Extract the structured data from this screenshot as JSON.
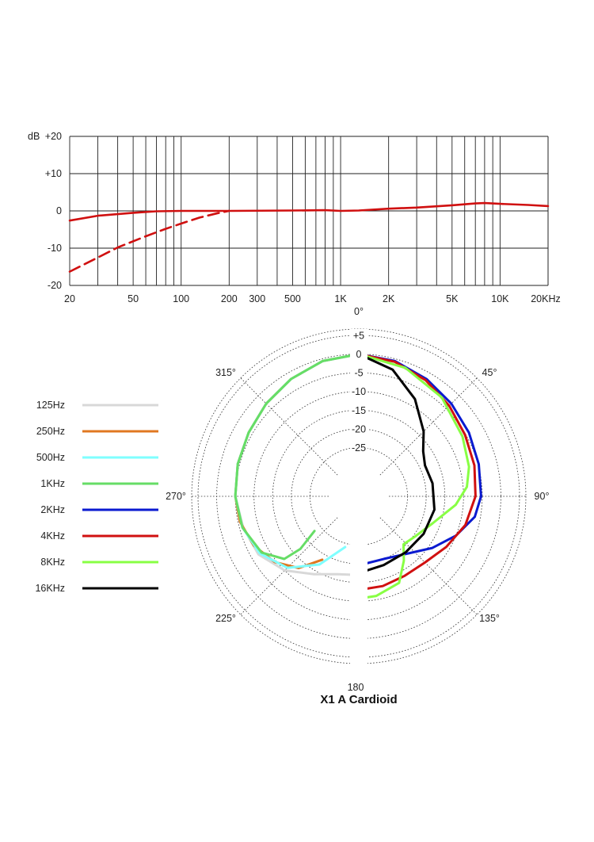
{
  "chart_data": [
    {
      "type": "line",
      "xscale": "log",
      "xlim": [
        20,
        20000
      ],
      "ylim": [
        -20,
        20
      ],
      "yunit": "dB",
      "grid": true,
      "y_ticks": [
        {
          "v": 20,
          "label": "+20"
        },
        {
          "v": 10,
          "label": "+10"
        },
        {
          "v": 0,
          "label": "0"
        },
        {
          "v": -10,
          "label": "-10"
        },
        {
          "v": -20,
          "label": "-20"
        }
      ],
      "x_ticks": [
        {
          "v": 20,
          "label": "20"
        },
        {
          "v": 50,
          "label": "50"
        },
        {
          "v": 100,
          "label": "100"
        },
        {
          "v": 200,
          "label": "200"
        },
        {
          "v": 300,
          "label": "300"
        },
        {
          "v": 500,
          "label": "500"
        },
        {
          "v": 1000,
          "label": "1K"
        },
        {
          "v": 2000,
          "label": "2K"
        },
        {
          "v": 5000,
          "label": "5K"
        },
        {
          "v": 10000,
          "label": "10K"
        },
        {
          "v": 20000,
          "label": "20KHz"
        }
      ],
      "series": [
        {
          "style": "solid",
          "color": "#d01010",
          "points": [
            [
              20,
              -2.6
            ],
            [
              30,
              -1.3
            ],
            [
              50,
              -0.5
            ],
            [
              70,
              -0.1
            ],
            [
              100,
              0
            ],
            [
              200,
              0
            ],
            [
              500,
              0.1
            ],
            [
              800,
              0.2
            ],
            [
              1000,
              0
            ],
            [
              1300,
              0.1
            ],
            [
              2000,
              0.6
            ],
            [
              3000,
              0.9
            ],
            [
              5000,
              1.5
            ],
            [
              7000,
              2.0
            ],
            [
              8000,
              2.1
            ],
            [
              10000,
              1.9
            ],
            [
              15000,
              1.6
            ],
            [
              20000,
              1.3
            ]
          ]
        },
        {
          "style": "dashed",
          "color": "#d01010",
          "points": [
            [
              20,
              -16.3
            ],
            [
              30,
              -12.5
            ],
            [
              40,
              -9.8
            ],
            [
              60,
              -6.8
            ],
            [
              80,
              -4.8
            ],
            [
              100,
              -3.4
            ],
            [
              130,
              -1.8
            ],
            [
              170,
              -0.6
            ],
            [
              200,
              0
            ]
          ]
        }
      ]
    },
    {
      "type": "polar",
      "title": "X1 A Cardioid",
      "r_ticks": [
        {
          "v": 5,
          "label": "+5"
        },
        {
          "v": 0,
          "label": "0"
        },
        {
          "v": -5,
          "label": "-5"
        },
        {
          "v": -10,
          "label": "-10"
        },
        {
          "v": -15,
          "label": "-15"
        },
        {
          "v": -20,
          "label": "-20"
        },
        {
          "v": -25,
          "label": "-25"
        }
      ],
      "r_range": [
        -30,
        5
      ],
      "angle_labels": [
        {
          "deg": 0,
          "label": "0°"
        },
        {
          "deg": 45,
          "label": "45°"
        },
        {
          "deg": 90,
          "label": "90°"
        },
        {
          "deg": 135,
          "label": "135°"
        },
        {
          "deg": 180,
          "label": "180"
        },
        {
          "deg": 225,
          "label": "225°"
        },
        {
          "deg": 270,
          "label": "270°"
        },
        {
          "deg": 315,
          "label": "315°"
        }
      ],
      "series": [
        {
          "name": "125Hz",
          "color": "#d8d8d8",
          "mirror": false,
          "points": [
            [
              180,
              -17
            ],
            [
              195,
              -16.5
            ],
            [
              210,
              -14
            ],
            [
              225,
              -10
            ],
            [
              240,
              -7
            ],
            [
              255,
              -6
            ],
            [
              270,
              -5
            ],
            [
              285,
              -4.5
            ],
            [
              300,
              -4
            ],
            [
              315,
              -3
            ],
            [
              330,
              -1.8
            ],
            [
              345,
              -0.6
            ],
            [
              360,
              0
            ]
          ]
        },
        {
          "name": "250Hz",
          "color": "#e07820",
          "mirror": false,
          "points": [
            [
              210,
              -18.5
            ],
            [
              220,
              -13
            ],
            [
              232,
              -9.5
            ],
            [
              245,
              -7
            ],
            [
              258,
              -5.5
            ],
            [
              270,
              -5
            ],
            [
              285,
              -4.5
            ],
            [
              300,
              -4
            ],
            [
              315,
              -3
            ],
            [
              330,
              -1.8
            ],
            [
              345,
              -0.6
            ],
            [
              360,
              0
            ]
          ]
        },
        {
          "name": "500Hz",
          "color": "#7fffff",
          "mirror": false,
          "points": [
            [
              195,
              -24
            ],
            [
              210,
              -17
            ],
            [
              225,
              -11
            ],
            [
              240,
              -7.5
            ],
            [
              255,
              -5.8
            ],
            [
              270,
              -5
            ],
            [
              285,
              -4.5
            ],
            [
              300,
              -4
            ],
            [
              315,
              -3
            ],
            [
              330,
              -1.8
            ],
            [
              345,
              -0.6
            ],
            [
              360,
              0
            ]
          ]
        },
        {
          "name": "1KHz",
          "color": "#66dd66",
          "mirror": false,
          "points": [
            [
              232,
              -23
            ],
            [
              228,
              -17
            ],
            [
              230,
              -12
            ],
            [
              240,
              -8
            ],
            [
              255,
              -5.8
            ],
            [
              270,
              -5
            ],
            [
              285,
              -4.5
            ],
            [
              300,
              -4
            ],
            [
              315,
              -3
            ],
            [
              330,
              -1.8
            ],
            [
              345,
              -0.6
            ],
            [
              360,
              0
            ]
          ]
        },
        {
          "name": "2KHz",
          "color": "#0a1ad0",
          "mirror": false,
          "points": [
            [
              0,
              0
            ],
            [
              15,
              -0.6
            ],
            [
              30,
              -1.8
            ],
            [
              45,
              -3
            ],
            [
              60,
              -4
            ],
            [
              75,
              -4.8
            ],
            [
              90,
              -5.3
            ],
            [
              100,
              -6.5
            ],
            [
              112,
              -10
            ],
            [
              125,
              -14
            ],
            [
              140,
              -18
            ],
            [
              158,
              -20
            ],
            [
              180,
              -19.6
            ]
          ]
        },
        {
          "name": "4KHz",
          "color": "#d01010",
          "mirror": false,
          "points": [
            [
              0,
              0
            ],
            [
              15,
              -0.8
            ],
            [
              30,
              -2.2
            ],
            [
              45,
              -3.8
            ],
            [
              60,
              -5.2
            ],
            [
              75,
              -6
            ],
            [
              90,
              -6.8
            ],
            [
              105,
              -8.5
            ],
            [
              120,
              -11
            ],
            [
              135,
              -13
            ],
            [
              150,
              -13.5
            ],
            [
              165,
              -13.2
            ],
            [
              180,
              -13
            ]
          ]
        },
        {
          "name": "8KHz",
          "color": "#88ff44",
          "mirror": false,
          "points": [
            [
              0,
              0
            ],
            [
              20,
              -1.5
            ],
            [
              40,
              -3.5
            ],
            [
              60,
              -6
            ],
            [
              75,
              -7.5
            ],
            [
              85,
              -9
            ],
            [
              95,
              -12
            ],
            [
              110,
              -17
            ],
            [
              125,
              -19.5
            ],
            [
              137,
              -20.5
            ],
            [
              145,
              -17
            ],
            [
              155,
              -12.5
            ],
            [
              170,
              -11
            ],
            [
              180,
              -10.7
            ]
          ]
        },
        {
          "name": "16KHz",
          "color": "#000000",
          "mirror": false,
          "points": [
            [
              0,
              0
            ],
            [
              15,
              -3
            ],
            [
              30,
              -8
            ],
            [
              45,
              -13.5
            ],
            [
              55,
              -17
            ],
            [
              65,
              -18.5
            ],
            [
              80,
              -18
            ],
            [
              100,
              -17.5
            ],
            [
              120,
              -18
            ],
            [
              140,
              -18.5
            ],
            [
              160,
              -18.5
            ],
            [
              175,
              -18
            ],
            [
              180,
              -18
            ]
          ]
        }
      ]
    }
  ]
}
